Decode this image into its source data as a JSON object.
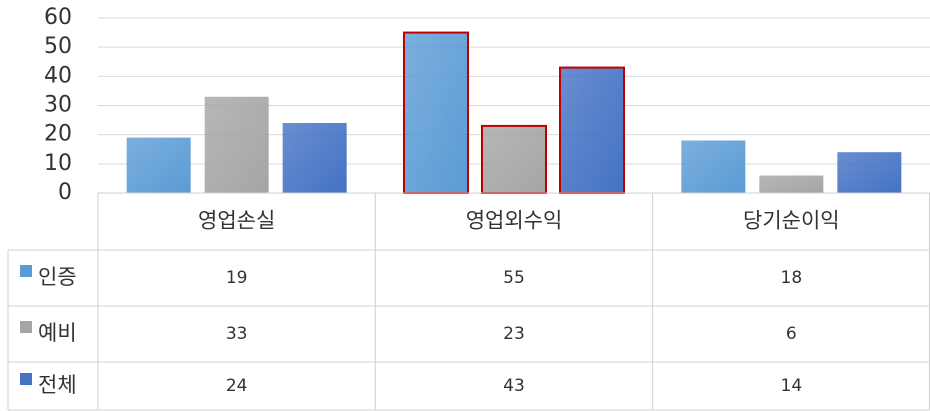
{
  "chart_data": {
    "type": "bar",
    "categories": [
      "영업손실",
      "영업외수익",
      "당기순이익"
    ],
    "series": [
      {
        "name": "인증",
        "color": "#5b9bd5",
        "values": [
          19,
          55,
          18
        ]
      },
      {
        "name": "예비",
        "color": "#a5a5a5",
        "values": [
          33,
          23,
          6
        ]
      },
      {
        "name": "전체",
        "color": "#4472c4",
        "values": [
          24,
          43,
          14
        ]
      }
    ],
    "ylim": [
      0,
      60
    ],
    "yticks": [
      0,
      10,
      20,
      30,
      40,
      50,
      60
    ],
    "grid": true,
    "highlight": {
      "index": 1,
      "color": "#c00000"
    },
    "data_table": true
  }
}
